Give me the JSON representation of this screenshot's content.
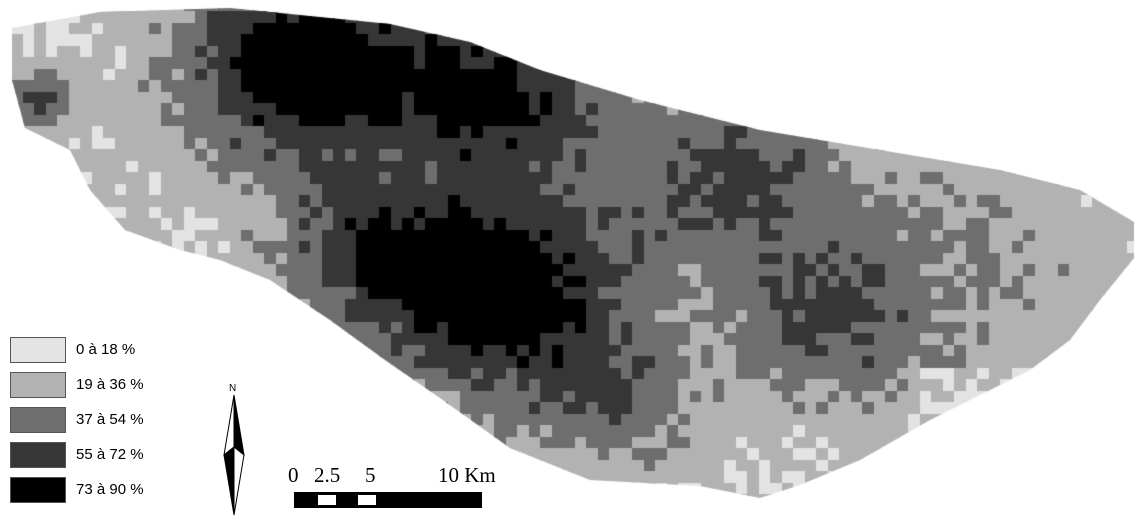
{
  "map": {
    "palette": [
      "#ffffff",
      "#e3e3e3",
      "#b2b2b2",
      "#6e6e6e",
      "#363636",
      "#000000"
    ]
  },
  "legend": {
    "items": [
      {
        "label": "0 à 18 %",
        "color": "#e3e3e3"
      },
      {
        "label": "19 à 36 %",
        "color": "#b2b2b2"
      },
      {
        "label": "37 à 54 %",
        "color": "#6e6e6e"
      },
      {
        "label": "55 à 72 %",
        "color": "#363636"
      },
      {
        "label": "73 à 90 %",
        "color": "#000000"
      }
    ]
  },
  "north_arrow": {
    "label": "N"
  },
  "scale_bar": {
    "ticks": [
      "0",
      "2.5",
      "5",
      "10 Km"
    ]
  }
}
